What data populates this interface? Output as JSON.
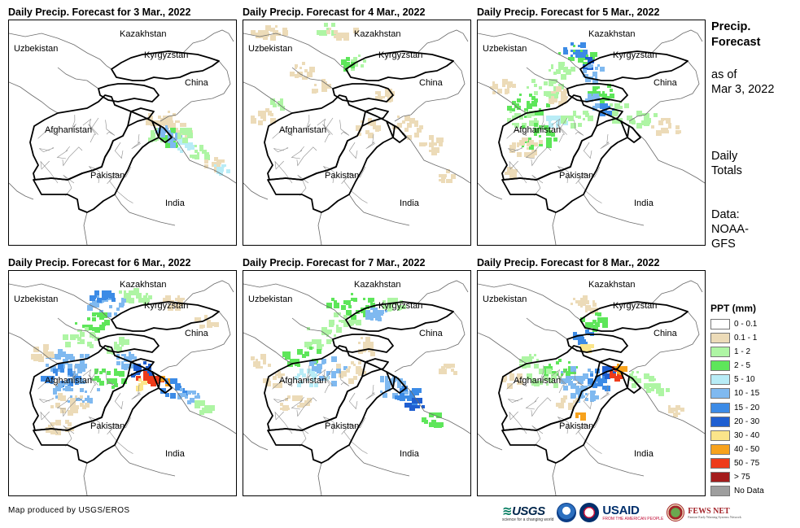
{
  "panels": [
    {
      "title": "Daily Precip. Forecast for 3 Mar., 2022",
      "date": "3 Mar."
    },
    {
      "title": "Daily Precip. Forecast for 4 Mar., 2022",
      "date": "4 Mar."
    },
    {
      "title": "Daily Precip. Forecast for 5 Mar., 2022",
      "date": "5 Mar."
    },
    {
      "title": "Daily Precip. Forecast for 6 Mar., 2022",
      "date": "6 Mar."
    },
    {
      "title": "Daily Precip. Forecast for 7 Mar., 2022",
      "date": "7 Mar."
    },
    {
      "title": "Daily Precip. Forecast for 8 Mar., 2022",
      "date": "8 Mar."
    }
  ],
  "map_labels": {
    "kazakhstan": "Kazakhstan",
    "uzbekistan": "Uzbekistan",
    "kyrgyzstan": "Kyrgyzstan",
    "china": "China",
    "afghanistan": "Afghanistan",
    "pakistan": "Pakistan",
    "india": "India"
  },
  "side_info": {
    "heading_line1": "Precip.",
    "heading_line2": "Forecast",
    "asof_line1": "as of",
    "asof_line2": "Mar 3, 2022",
    "period_line1": "Daily",
    "period_line2": "Totals",
    "data_line1": "Data:",
    "data_line2": "NOAA-",
    "data_line3": "GFS"
  },
  "legend": {
    "title": "PPT (mm)",
    "items": [
      {
        "label": "0 - 0.1",
        "color": "#ffffff"
      },
      {
        "label": "0.1 - 1",
        "color": "#ecdbb8"
      },
      {
        "label": "1 - 2",
        "color": "#aef5a4"
      },
      {
        "label": "2 - 5",
        "color": "#5ee65a"
      },
      {
        "label": "5 - 10",
        "color": "#b8ecf6"
      },
      {
        "label": "10 - 15",
        "color": "#7fb9f0"
      },
      {
        "label": "15 - 20",
        "color": "#3c8be6"
      },
      {
        "label": "20 - 30",
        "color": "#1f5fd1"
      },
      {
        "label": "30 - 40",
        "color": "#fbe58a"
      },
      {
        "label": "40 - 50",
        "color": "#f7a21c"
      },
      {
        "label": "50 - 75",
        "color": "#ee3b1a"
      },
      {
        "label": "> 75",
        "color": "#a41c1c"
      },
      {
        "label": "No Data",
        "color": "#9e9e9e"
      }
    ]
  },
  "credit": "Map produced by USGS/EROS",
  "logos": {
    "usgs": "USGS",
    "usgs_tag": "science for a changing world",
    "usaid": "USAID",
    "usaid_tag": "FROM THE AMERICAN PEOPLE",
    "fews": "FEWS NET",
    "fews_tag": "Famine Early Warning Systems Network"
  }
}
